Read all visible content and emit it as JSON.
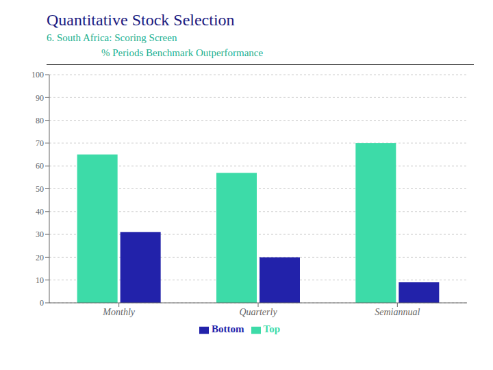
{
  "chart_data": {
    "type": "bar",
    "title": "Quantitative Stock Selection",
    "subtitle": [
      "6. South Africa: Scoring Screen",
      "% Periods Benchmark Outperformance"
    ],
    "categories": [
      "Monthly",
      "Quarterly",
      "Semiannual"
    ],
    "series": [
      {
        "name": "Top",
        "color": "#3DDBA8",
        "values": [
          65,
          57,
          70
        ]
      },
      {
        "name": "Bottom",
        "color": "#2222AA",
        "values": [
          31,
          20,
          9
        ]
      }
    ],
    "ylim": [
      0,
      100
    ],
    "yticks": [
      0,
      10,
      20,
      30,
      40,
      50,
      60,
      70,
      80,
      90,
      100
    ],
    "grid": true,
    "legend": "bottom"
  }
}
